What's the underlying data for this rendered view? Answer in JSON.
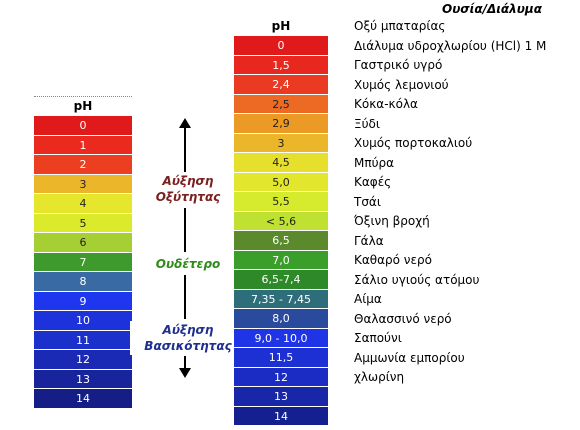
{
  "left_scale": {
    "header": "pH",
    "cells": [
      {
        "label": "0",
        "color": "#e01a1a"
      },
      {
        "label": "1",
        "color": "#ea2a1e"
      },
      {
        "label": "2",
        "color": "#ec3f22"
      },
      {
        "label": "3",
        "color": "#ecb62a"
      },
      {
        "label": "4",
        "color": "#e6e62c"
      },
      {
        "label": "5",
        "color": "#dcea2c"
      },
      {
        "label": "6",
        "color": "#a6cf34"
      },
      {
        "label": "7",
        "color": "#3e9a2c"
      },
      {
        "label": "8",
        "color": "#3a6aa4"
      },
      {
        "label": "9",
        "color": "#1e36ee"
      },
      {
        "label": "10",
        "color": "#1e32dc"
      },
      {
        "label": "11",
        "color": "#1c30cc"
      },
      {
        "label": "12",
        "color": "#1a2ab4"
      },
      {
        "label": "13",
        "color": "#18249c"
      },
      {
        "label": "14",
        "color": "#141e86"
      }
    ]
  },
  "right_scale": {
    "header": "pH",
    "cells": [
      {
        "label": "0",
        "color": "#e01a1a"
      },
      {
        "label": "1,5",
        "color": "#e8281e"
      },
      {
        "label": "2,4",
        "color": "#ea3a22"
      },
      {
        "label": "2,5",
        "color": "#ec6a24"
      },
      {
        "label": "2,9",
        "color": "#ec9a26"
      },
      {
        "label": "3",
        "color": "#ecb62a"
      },
      {
        "label": "4,5",
        "color": "#e6e02c"
      },
      {
        "label": "5,0",
        "color": "#e2e62c"
      },
      {
        "label": "5,5",
        "color": "#d6ea2e"
      },
      {
        "label": "< 5,6",
        "color": "#bfe232"
      },
      {
        "label": "6,5",
        "color": "#5a8a2c"
      },
      {
        "label": "7,0",
        "color": "#3a9e2a"
      },
      {
        "label": "6,5-7,4",
        "color": "#2e8a28"
      },
      {
        "label": "7,35 - 7,45",
        "color": "#2e6e7a"
      },
      {
        "label": "8,0",
        "color": "#2a4a9e"
      },
      {
        "label": "9,0 - 10,0",
        "color": "#1e34e6"
      },
      {
        "label": "11,5",
        "color": "#1c30d4"
      },
      {
        "label": "12",
        "color": "#1a2cc4"
      },
      {
        "label": "13",
        "color": "#1826a8"
      },
      {
        "label": "14",
        "color": "#142090"
      }
    ]
  },
  "labels": {
    "acid": "Αύξηση Οξύτητας",
    "neutral": "Ουδέτερο",
    "base": "Αύξηση Βασικότητας"
  },
  "substances": {
    "header": "Ουσία/Διάλυμα",
    "items": [
      "Οξύ μπαταρίας",
      "Διάλυμα υδροχλωρίου (HCl) 1 M",
      "Γαστρικό υγρό",
      "Χυμός λεμονιού",
      "Κόκα-κόλα",
      "Ξύδι",
      "Χυμός πορτοκαλιού",
      "Μπύρα",
      "Καφές",
      "Τσάι",
      "Όξινη βροχή",
      "Γάλα",
      "Καθαρό νερό",
      "Σάλιο υγιούς ατόμου",
      "Αίμα",
      "Θαλασσινό νερό",
      "Σαπούνι",
      "Αμμωνία εμπορίου",
      "χλωρίνη"
    ]
  }
}
